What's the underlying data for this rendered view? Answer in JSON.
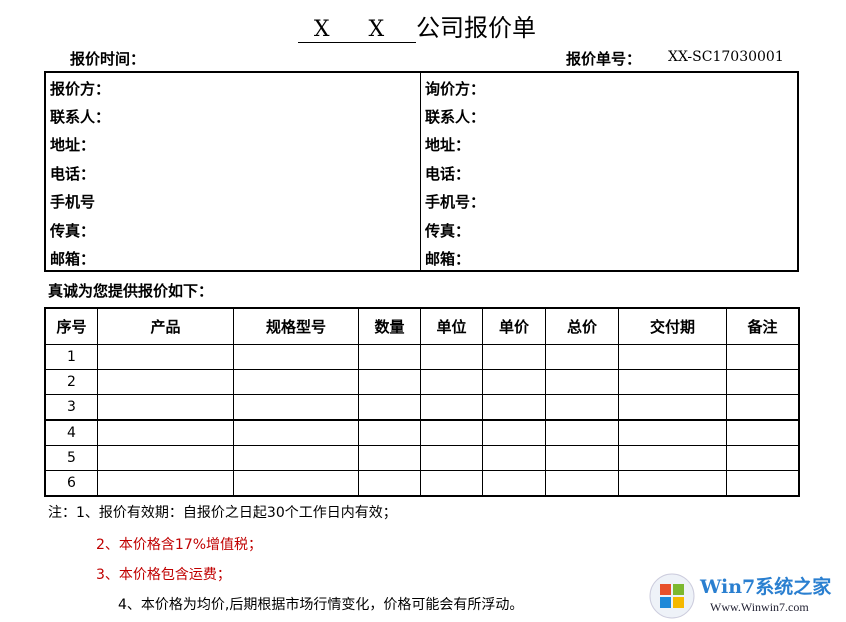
{
  "title": {
    "placeholder": "X X",
    "text": "公司报价单"
  },
  "header": {
    "time_label": "报价时间：",
    "number_label": "报价单号：",
    "number_value": "XX-SC17030001"
  },
  "left": [
    "报价方：",
    "联系人：",
    "地址：",
    "电话：",
    "手机号",
    "传真：",
    "邮箱："
  ],
  "right": [
    "询价方：",
    "联系人：",
    "地址：",
    "电话：",
    "手机号：",
    "传真：",
    "邮箱："
  ],
  "intro": "真诚为您提供报价如下：",
  "table": {
    "columns": [
      "序号",
      "产品",
      "规格型号",
      "数量",
      "单位",
      "单价",
      "总价",
      "交付期",
      "备注"
    ],
    "rows": [
      "1",
      "2",
      "3",
      "4",
      "5",
      "6"
    ]
  },
  "notes": {
    "n1": "注：1、报价有效期：自报价之日起30个工作日内有效；",
    "n2": "本价格含17%增值税；",
    "n2_num": "2、",
    "n3": "本价格包含运费；",
    "n3_num": "3、",
    "n4": "4、本价格为均价,后期根据市场行情变化，价格可能会有所浮动。",
    "red": "#c00000"
  },
  "watermark": {
    "brand": "Win7系统之家",
    "url": "Www.Winwin7.com"
  }
}
